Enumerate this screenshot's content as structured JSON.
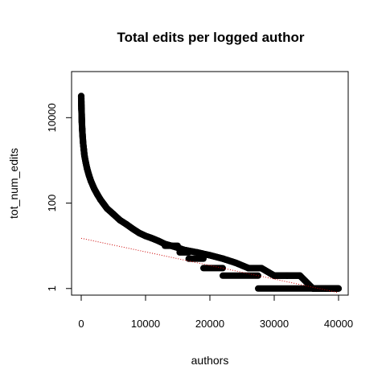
{
  "chart_data": {
    "type": "scatter",
    "title": "Total edits per logged author",
    "xlabel": "authors",
    "ylabel": "tot_num_edits",
    "x_scale": "linear",
    "y_scale": "log",
    "xlim": [
      -1500,
      41500
    ],
    "ylim": [
      0.7,
      120000
    ],
    "x_ticks": [
      0,
      10000,
      20000,
      30000,
      40000
    ],
    "x_tick_labels": [
      "0",
      "10000",
      "20000",
      "30000",
      "40000"
    ],
    "y_ticks": [
      1,
      100,
      10000
    ],
    "y_tick_labels": [
      "1",
      "100",
      "10000"
    ],
    "grid": false,
    "legend": "none",
    "colors": {
      "points": "#000000",
      "trend": "#cc0000",
      "frame": "#000000"
    },
    "series": [
      {
        "marker": "open-circle",
        "points": [
          [
            0,
            32000
          ],
          [
            5,
            28000
          ],
          [
            10,
            24000
          ],
          [
            20,
            20000
          ],
          [
            40,
            16000
          ],
          [
            70,
            12000
          ],
          [
            100,
            8000
          ],
          [
            150,
            5500
          ],
          [
            200,
            4000
          ],
          [
            300,
            2500
          ],
          [
            400,
            1800
          ],
          [
            500,
            1300
          ],
          [
            700,
            900
          ],
          [
            900,
            650
          ],
          [
            1200,
            450
          ],
          [
            1500,
            330
          ],
          [
            2000,
            220
          ],
          [
            2500,
            160
          ],
          [
            3000,
            120
          ],
          [
            3500,
            95
          ],
          [
            4000,
            75
          ],
          [
            5000,
            55
          ],
          [
            6000,
            40
          ],
          [
            7000,
            32
          ],
          [
            8000,
            25
          ],
          [
            9000,
            20
          ],
          [
            10000,
            17
          ],
          [
            11000,
            15
          ],
          [
            12000,
            13
          ],
          [
            13000,
            11
          ],
          [
            14000,
            10
          ],
          [
            15000,
            9
          ],
          [
            16000,
            8
          ],
          [
            18000,
            7
          ],
          [
            20000,
            6
          ],
          [
            22000,
            5
          ],
          [
            24000,
            4
          ],
          [
            26000,
            3
          ],
          [
            28000,
            3
          ],
          [
            30000,
            2
          ],
          [
            32000,
            2
          ],
          [
            34000,
            2
          ],
          [
            36000,
            1
          ],
          [
            38000,
            1
          ],
          [
            40000,
            1
          ]
        ]
      }
    ],
    "steps": [
      {
        "y": 10,
        "x_start": 13000,
        "x_end": 15000
      },
      {
        "y": 7,
        "x_start": 15300,
        "x_end": 16700
      },
      {
        "y": 5,
        "x_start": 16700,
        "x_end": 19000
      },
      {
        "y": 3,
        "x_start": 19000,
        "x_end": 22000
      },
      {
        "y": 2,
        "x_start": 22000,
        "x_end": 27500
      },
      {
        "y": 1,
        "x_start": 27500,
        "x_end": 40000
      }
    ],
    "trend_line": {
      "style": "dotted",
      "x": [
        0,
        40000
      ],
      "y": [
        15,
        0.8
      ]
    }
  }
}
